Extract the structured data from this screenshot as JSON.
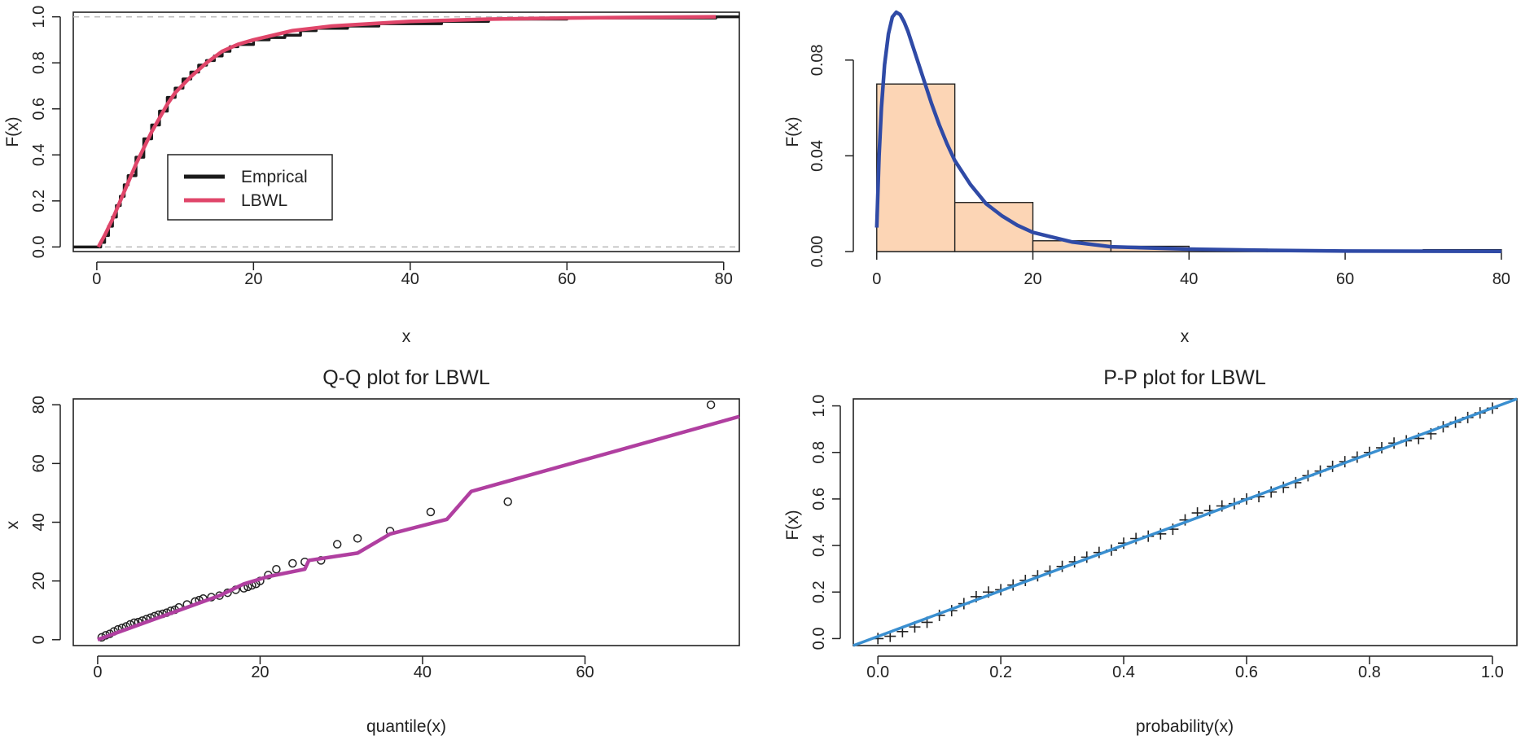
{
  "colors": {
    "empirical": "#1a1a1a",
    "lbwl_cdf": "#e0466a",
    "density": "#2f4aa6",
    "hist_fill": "#fcd5b5",
    "qq_line": "#b03fa0",
    "pp_line": "#3a8fd0",
    "ref_dash": "#bdbdbd"
  },
  "chart_data": [
    {
      "id": "cdf",
      "type": "line",
      "title": "",
      "xlabel": "x",
      "ylabel": "F(x)",
      "xlim": [
        -3,
        82
      ],
      "ylim": [
        -0.02,
        1.02
      ],
      "xticks": [
        0,
        20,
        40,
        60,
        80
      ],
      "xtick_labels": [
        "0",
        "20",
        "40",
        "60",
        "80"
      ],
      "yticks": [
        0,
        0.2,
        0.4,
        0.6,
        0.8,
        1.0
      ],
      "ytick_labels": [
        "0.0",
        "0.2",
        "0.4",
        "0.6",
        "0.8",
        "1.0"
      ],
      "reference_lines": [
        0,
        1
      ],
      "legend": {
        "position": "center-left",
        "entries": [
          {
            "label": "Emprical",
            "color_key": "empirical"
          },
          {
            "label": "LBWL",
            "color_key": "lbwl_cdf"
          }
        ]
      },
      "series": [
        {
          "name": "Emprical",
          "style": "step",
          "color_key": "empirical",
          "x": [
            -3,
            0.2,
            0.5,
            1,
            1.5,
            2,
            2.5,
            3,
            3.5,
            4,
            5,
            6,
            7,
            8,
            9,
            10,
            11,
            12,
            13,
            14,
            15,
            16,
            17,
            18,
            20,
            22,
            24,
            26,
            28,
            32,
            36,
            44,
            50,
            60,
            79,
            82
          ],
          "y": [
            0,
            0.0,
            0.02,
            0.05,
            0.09,
            0.13,
            0.18,
            0.22,
            0.27,
            0.31,
            0.39,
            0.47,
            0.53,
            0.59,
            0.65,
            0.69,
            0.73,
            0.76,
            0.79,
            0.81,
            0.83,
            0.85,
            0.87,
            0.88,
            0.9,
            0.91,
            0.92,
            0.94,
            0.95,
            0.96,
            0.97,
            0.98,
            0.99,
            0.995,
            1.0,
            1.0
          ]
        },
        {
          "name": "LBWL",
          "style": "line",
          "color_key": "lbwl_cdf",
          "x": [
            0.2,
            1,
            2,
            3,
            4,
            5,
            6,
            7,
            8,
            9,
            10,
            12,
            14,
            16,
            18,
            20,
            25,
            30,
            40,
            50,
            60,
            79
          ],
          "y": [
            0.0,
            0.05,
            0.12,
            0.2,
            0.28,
            0.36,
            0.43,
            0.5,
            0.56,
            0.62,
            0.67,
            0.74,
            0.8,
            0.85,
            0.88,
            0.9,
            0.94,
            0.96,
            0.98,
            0.99,
            0.995,
            1.0
          ]
        }
      ]
    },
    {
      "id": "density",
      "type": "bar",
      "title": "",
      "xlabel": "x",
      "ylabel": "F(x)",
      "xlim": [
        -3,
        82
      ],
      "ylim": [
        0,
        0.1
      ],
      "xticks": [
        0,
        20,
        40,
        60,
        80
      ],
      "xtick_labels": [
        "0",
        "20",
        "40",
        "60",
        "80"
      ],
      "yticks": [
        0,
        0.04,
        0.08
      ],
      "ytick_labels": [
        "0.00",
        "0.04",
        "0.08"
      ],
      "bins": [
        [
          0,
          10
        ],
        [
          10,
          20
        ],
        [
          20,
          30
        ],
        [
          30,
          40
        ],
        [
          40,
          50
        ],
        [
          50,
          60
        ],
        [
          60,
          70
        ],
        [
          70,
          80
        ]
      ],
      "values": [
        0.07,
        0.0205,
        0.0045,
        0.0022,
        0.001,
        0.0006,
        0.0005,
        0.0008
      ],
      "series": [
        {
          "name": "LBWL density",
          "style": "line",
          "color_key": "density",
          "x": [
            0,
            0.3,
            0.6,
            1,
            1.5,
            2,
            2.5,
            3,
            3.5,
            4,
            5,
            6,
            7,
            8,
            9,
            10,
            12,
            14,
            16,
            18,
            20,
            25,
            30,
            40,
            50,
            60,
            80
          ],
          "y": [
            0.01,
            0.04,
            0.06,
            0.078,
            0.091,
            0.098,
            0.1,
            0.099,
            0.096,
            0.092,
            0.082,
            0.072,
            0.062,
            0.053,
            0.045,
            0.038,
            0.028,
            0.02,
            0.015,
            0.011,
            0.008,
            0.004,
            0.002,
            0.001,
            0.0005,
            0.0002,
            0.0001
          ]
        }
      ]
    },
    {
      "id": "qq",
      "type": "scatter",
      "title": "Q-Q plot for  LBWL",
      "xlabel": "quantile(x)",
      "ylabel": "x",
      "xlim": [
        -3,
        79
      ],
      "ylim": [
        -2,
        82
      ],
      "xticks": [
        0,
        20,
        40,
        60
      ],
      "xtick_labels": [
        "0",
        "20",
        "40",
        "60"
      ],
      "yticks": [
        0,
        20,
        40,
        60,
        80
      ],
      "ytick_labels": [
        "0",
        "20",
        "40",
        "60",
        "80"
      ],
      "points": {
        "x": [
          0.5,
          1,
          1.5,
          2,
          2.5,
          3,
          3.5,
          4,
          4.5,
          5,
          5.5,
          6,
          6.5,
          7,
          7.5,
          8,
          8.5,
          9,
          9.5,
          10,
          11,
          12,
          12.5,
          13,
          14,
          15,
          16,
          17,
          18,
          18.5,
          19,
          19.5,
          20,
          21,
          22,
          24,
          25.5,
          27.5,
          29.5,
          32,
          36,
          41,
          50.5,
          75.5
        ],
        "y": [
          0.8,
          1.5,
          2,
          2.8,
          3.5,
          4,
          4.5,
          5.2,
          5.8,
          6,
          6.5,
          7,
          7.5,
          8,
          8.5,
          8.8,
          9.2,
          9.8,
          10.2,
          11,
          12,
          13,
          13.5,
          14,
          14.5,
          15,
          16,
          17,
          17.5,
          18,
          18.5,
          19,
          20,
          22,
          24,
          26,
          26.5,
          27,
          32.5,
          34.5,
          37,
          43.5,
          47,
          80
        ]
      },
      "series": [
        {
          "name": "LBWL quantiles",
          "style": "line",
          "color_key": "qq_line",
          "x": [
            0,
            5,
            10,
            15,
            18,
            21,
            25.5,
            26,
            32,
            36,
            43,
            46,
            79
          ],
          "y": [
            0,
            5,
            10,
            15,
            19,
            21.5,
            24,
            27,
            29.5,
            36,
            41,
            50.5,
            76
          ]
        }
      ]
    },
    {
      "id": "pp",
      "type": "scatter",
      "title": "P-P plot for  LBWL",
      "xlabel": "probability(x)",
      "ylabel": "F(x)",
      "xlim": [
        -0.04,
        1.04
      ],
      "ylim": [
        -0.03,
        1.03
      ],
      "xticks": [
        0,
        0.2,
        0.4,
        0.6,
        0.8,
        1.0
      ],
      "xtick_labels": [
        "0.0",
        "0.2",
        "0.4",
        "0.6",
        "0.8",
        "1.0"
      ],
      "yticks": [
        0,
        0.2,
        0.4,
        0.6,
        0.8,
        1.0
      ],
      "ytick_labels": [
        "0.0",
        "0.2",
        "0.4",
        "0.6",
        "0.8",
        "1.0"
      ],
      "points": {
        "x": [
          0.0,
          0.02,
          0.04,
          0.06,
          0.08,
          0.1,
          0.12,
          0.14,
          0.16,
          0.18,
          0.2,
          0.22,
          0.24,
          0.26,
          0.28,
          0.3,
          0.32,
          0.34,
          0.36,
          0.38,
          0.4,
          0.42,
          0.44,
          0.46,
          0.48,
          0.5,
          0.52,
          0.54,
          0.56,
          0.58,
          0.6,
          0.62,
          0.64,
          0.66,
          0.68,
          0.7,
          0.72,
          0.74,
          0.76,
          0.78,
          0.8,
          0.82,
          0.84,
          0.86,
          0.88,
          0.9,
          0.92,
          0.94,
          0.96,
          0.98,
          1.0
        ],
        "y": [
          0.0,
          0.01,
          0.03,
          0.05,
          0.07,
          0.1,
          0.12,
          0.15,
          0.18,
          0.2,
          0.21,
          0.23,
          0.25,
          0.27,
          0.29,
          0.31,
          0.33,
          0.35,
          0.37,
          0.38,
          0.41,
          0.43,
          0.44,
          0.45,
          0.47,
          0.51,
          0.54,
          0.55,
          0.57,
          0.58,
          0.6,
          0.61,
          0.63,
          0.65,
          0.67,
          0.7,
          0.72,
          0.74,
          0.76,
          0.78,
          0.8,
          0.82,
          0.84,
          0.85,
          0.86,
          0.88,
          0.91,
          0.93,
          0.95,
          0.97,
          0.99
        ]
      },
      "series": [
        {
          "name": "LBWL fit",
          "style": "line",
          "color_key": "pp_line",
          "x": [
            -0.04,
            1.04
          ],
          "y": [
            -0.03,
            1.03
          ]
        }
      ]
    }
  ]
}
